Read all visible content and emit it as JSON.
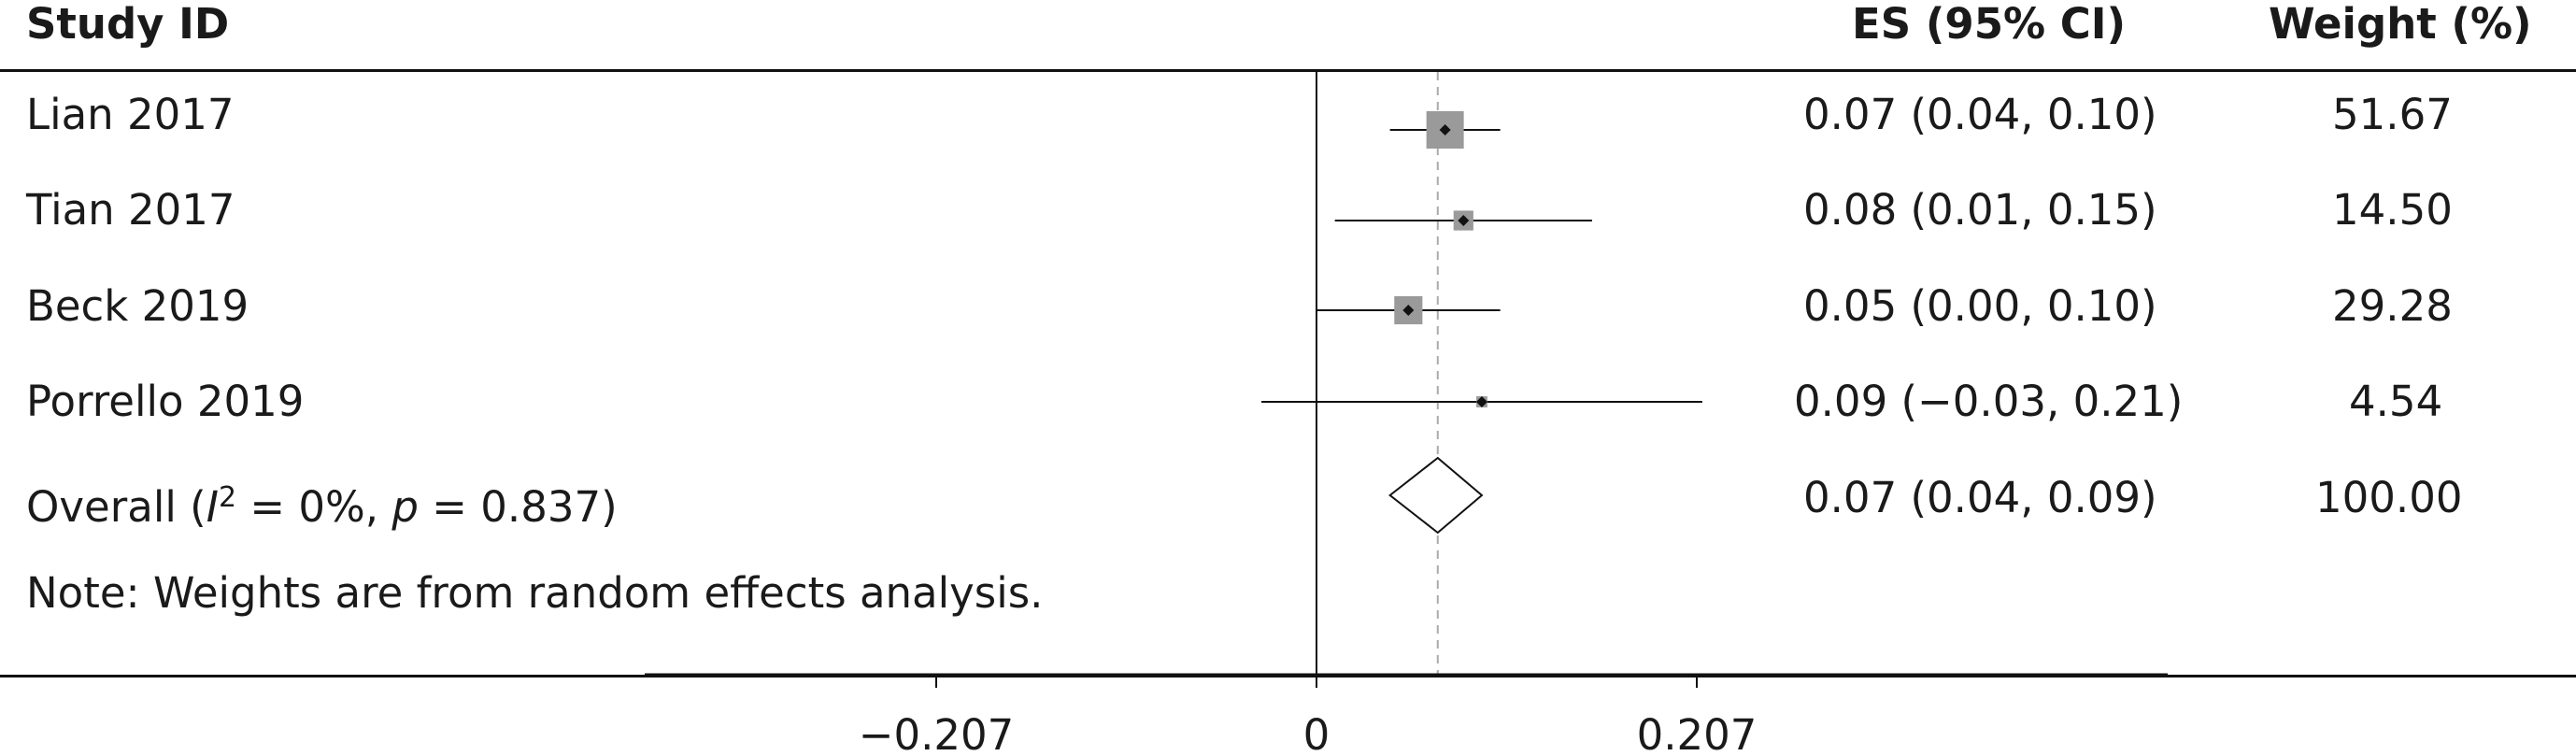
{
  "header": {
    "study": "Study ID",
    "es": "ES (95% CI)",
    "weight": "Weight (%)"
  },
  "note": "Note: Weights are from random effects analysis.",
  "chart_data": {
    "type": "forest",
    "x_axis": {
      "ticks": [
        -0.207,
        0,
        0.207
      ],
      "tick_labels": [
        "−0.207",
        "0",
        "0.207"
      ],
      "range": [
        -0.37,
        0.47
      ]
    },
    "studies": [
      {
        "name": "Lian 2017",
        "es": 0.07,
        "lo": 0.04,
        "hi": 0.1,
        "es_text": "0.07 (0.04, 0.10)",
        "weight": 51.67,
        "weight_text": "51.67"
      },
      {
        "name": "Tian 2017",
        "es": 0.08,
        "lo": 0.01,
        "hi": 0.15,
        "es_text": "0.08 (0.01, 0.15)",
        "weight": 14.5,
        "weight_text": "14.50"
      },
      {
        "name": "Beck 2019",
        "es": 0.05,
        "lo": 0.0,
        "hi": 0.1,
        "es_text": "0.05 (0.00, 0.10)",
        "weight": 29.28,
        "weight_text": "29.28"
      },
      {
        "name": "Porrello 2019",
        "es": 0.09,
        "lo": -0.03,
        "hi": 0.21,
        "es_text": "0.09 (−0.03, 0.21)",
        "weight": 4.54,
        "weight_text": "4.54"
      }
    ],
    "overall": {
      "label_prefix": "Overall (",
      "label_i": "I",
      "label_sup": "2",
      "label_mid": " = 0%, ",
      "label_p": "p",
      "label_end": " = 0.837)",
      "es": 0.066,
      "lo": 0.04,
      "hi": 0.09,
      "es_text": "0.07 (0.04, 0.09)",
      "weight_text": "100.00"
    },
    "colors": {
      "box": "#9a9a9a",
      "line": "#111111",
      "ref_line": "#aaaaaa"
    }
  }
}
